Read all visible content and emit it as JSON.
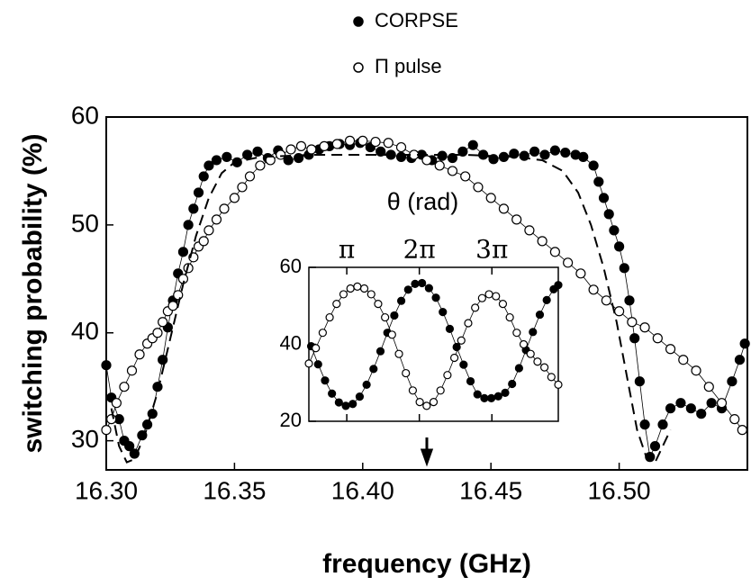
{
  "chart_data": [
    {
      "type": "scatter",
      "x_label": "frequency (GHz)",
      "y_label": "switching probability (%)",
      "xlim": [
        16.3,
        16.55
      ],
      "ylim": [
        27.3,
        60
      ],
      "xticks": [
        {
          "value": 16.3,
          "label": "16.30"
        },
        16.35,
        {
          "value": 16.4,
          "label": "16.40"
        },
        16.45,
        {
          "value": 16.5,
          "label": "16.50"
        }
      ],
      "yticks": [
        30,
        40,
        50,
        60
      ],
      "arrow_x": 16.425,
      "legend": "top",
      "series": [
        {
          "name": "CORPSE",
          "marker": "filled",
          "color": "#000000",
          "x": [
            16.3,
            16.302,
            16.305,
            16.307,
            16.309,
            16.311,
            16.314,
            16.316,
            16.318,
            16.32,
            16.322,
            16.324,
            16.326,
            16.328,
            16.33,
            16.332,
            16.334,
            16.336,
            16.338,
            16.34,
            16.343,
            16.347,
            16.351,
            16.355,
            16.359,
            16.363,
            16.367,
            16.371,
            16.375,
            16.379,
            16.383,
            16.387,
            16.391,
            16.395,
            16.399,
            16.403,
            16.407,
            16.411,
            16.415,
            16.419,
            16.423,
            16.427,
            16.431,
            16.435,
            16.439,
            16.443,
            16.447,
            16.451,
            16.455,
            16.459,
            16.463,
            16.467,
            16.471,
            16.475,
            16.479,
            16.483,
            16.486,
            16.49,
            16.492,
            16.494,
            16.496,
            16.498,
            16.5,
            16.502,
            16.504,
            16.506,
            16.508,
            16.51,
            16.512,
            16.514,
            16.517,
            16.52,
            16.524,
            16.528,
            16.532,
            16.536,
            16.54,
            16.544,
            16.547,
            16.549
          ],
          "values": [
            37,
            34,
            32,
            30,
            29.5,
            28.8,
            30.5,
            31.5,
            32.5,
            35,
            37.5,
            40.5,
            43,
            45.5,
            47.5,
            50,
            51.5,
            53,
            54.5,
            55.5,
            56,
            56.3,
            55.8,
            56.5,
            56.8,
            56.2,
            56.9,
            56,
            56.2,
            56.5,
            57,
            57.3,
            57.5,
            57.4,
            57.6,
            57.2,
            56.8,
            56.5,
            56.3,
            56.2,
            56.5,
            56,
            56.4,
            56.2,
            56.8,
            57.4,
            56.5,
            56.1,
            56.3,
            56.6,
            56.4,
            56.8,
            56.5,
            56.9,
            56.7,
            56.5,
            56.3,
            55.5,
            54,
            52.5,
            51,
            49.5,
            48,
            46,
            43,
            39.5,
            35.5,
            31.5,
            28.5,
            29.5,
            31.5,
            33,
            33.5,
            33,
            32.5,
            33.5,
            33,
            35.5,
            37.5,
            39
          ]
        },
        {
          "name": "Π pulse",
          "marker": "open",
          "color": "#000000",
          "x": [
            16.3,
            16.302,
            16.304,
            16.307,
            16.31,
            16.313,
            16.316,
            16.318,
            16.32,
            16.322,
            16.324,
            16.326,
            16.328,
            16.33,
            16.332,
            16.334,
            16.336,
            16.338,
            16.34,
            16.343,
            16.346,
            16.35,
            16.353,
            16.356,
            16.36,
            16.364,
            16.368,
            16.372,
            16.376,
            16.38,
            16.385,
            16.39,
            16.395,
            16.4,
            16.405,
            16.41,
            16.415,
            16.42,
            16.425,
            16.43,
            16.435,
            16.44,
            16.445,
            16.45,
            16.455,
            16.46,
            16.465,
            16.47,
            16.475,
            16.48,
            16.485,
            16.49,
            16.495,
            16.5,
            16.505,
            16.51,
            16.515,
            16.52,
            16.525,
            16.53,
            16.535,
            16.54,
            16.545,
            16.548
          ],
          "values": [
            31,
            32,
            33.5,
            35,
            36.5,
            38,
            39,
            39.5,
            40,
            41,
            42,
            42.5,
            43.5,
            45,
            46,
            47,
            48,
            48.5,
            49.5,
            50.5,
            51.5,
            52.5,
            53.5,
            54.5,
            55.5,
            56,
            56.5,
            57,
            57.3,
            57,
            57.3,
            57.5,
            57.8,
            57.8,
            57.7,
            57.6,
            57.2,
            56.5,
            56,
            55.5,
            55,
            54.5,
            53.5,
            52.5,
            51.5,
            50.5,
            49.5,
            48.5,
            47.5,
            46.5,
            45.5,
            44,
            43,
            42,
            41,
            40.5,
            39.5,
            38.5,
            37.5,
            36.5,
            35,
            33.5,
            32,
            31
          ]
        },
        {
          "marker": "none",
          "dash": true,
          "color": "#000000",
          "x": [
            16.302,
            16.305,
            16.308,
            16.311,
            16.315,
            16.32,
            16.325,
            16.33,
            16.335,
            16.34,
            16.345,
            16.35,
            16.36,
            16.38,
            16.4,
            16.42,
            16.44,
            16.46,
            16.47,
            16.478,
            16.484,
            16.489,
            16.494,
            16.499,
            16.503,
            16.507,
            16.511,
            16.514,
            16.517,
            16.52
          ],
          "values": [
            33,
            29.5,
            28,
            28.3,
            30.5,
            34.5,
            39.5,
            44.5,
            49,
            52.5,
            54.8,
            55.8,
            56.3,
            56.5,
            56.5,
            56.5,
            56.5,
            56.3,
            56,
            55,
            53,
            50,
            46,
            41,
            36,
            31,
            28.2,
            28,
            29.5,
            31
          ]
        }
      ]
    },
    {
      "type": "scatter",
      "title": "θ (rad)",
      "xlim": [
        1.5,
        12.3
      ],
      "ylim": [
        20,
        60
      ],
      "xticks": [
        {
          "value": 3.14159,
          "label": "π"
        },
        {
          "value": 6.28319,
          "label": "2π"
        },
        {
          "value": 9.42478,
          "label": "3π"
        }
      ],
      "yticks": [
        20,
        40,
        60
      ],
      "series": [
        {
          "marker": "filled",
          "color": "#000000",
          "x": [
            1.6,
            1.9,
            2.2,
            2.5,
            2.8,
            3.1,
            3.4,
            3.7,
            4.0,
            4.3,
            4.6,
            4.9,
            5.2,
            5.5,
            5.8,
            6.1,
            6.4,
            6.7,
            7.0,
            7.3,
            7.6,
            7.9,
            8.2,
            8.5,
            8.8,
            9.1,
            9.4,
            9.7,
            10.0,
            10.3,
            10.6,
            10.9,
            11.2,
            11.5,
            11.8,
            12.1,
            12.3
          ],
          "values": [
            39.5,
            34.8,
            30.6,
            27.2,
            24.9,
            24.0,
            24.5,
            26.4,
            29.5,
            33.6,
            38.2,
            43.0,
            47.5,
            51.3,
            54.2,
            55.7,
            55.9,
            54.6,
            52.1,
            48.4,
            44.0,
            39.3,
            34.7,
            30.4,
            27.0,
            26.0,
            26.0,
            26.5,
            27.4,
            29.7,
            33.8,
            38.5,
            43.2,
            47.7,
            51.5,
            54.3,
            55.4
          ]
        },
        {
          "marker": "open",
          "color": "#000000",
          "x": [
            1.5,
            1.8,
            2.1,
            2.4,
            2.7,
            3.0,
            3.3,
            3.6,
            3.9,
            4.2,
            4.5,
            4.8,
            5.1,
            5.4,
            5.7,
            6.0,
            6.3,
            6.6,
            6.9,
            7.2,
            7.5,
            7.8,
            8.1,
            8.4,
            8.7,
            9.0,
            9.3,
            9.6,
            9.9,
            10.2,
            10.5,
            10.8,
            11.1,
            11.4,
            11.7,
            12.0,
            12.3
          ],
          "values": [
            35,
            39,
            43,
            47,
            50.5,
            53,
            54.5,
            55,
            54.5,
            53,
            50.5,
            47,
            42.5,
            37.5,
            32.5,
            28,
            25,
            24,
            25,
            28,
            32,
            36.5,
            41,
            45.5,
            49.5,
            52,
            53,
            52.5,
            50.5,
            47,
            43,
            40,
            37.5,
            35.5,
            34,
            31.5,
            29.5
          ]
        }
      ]
    }
  ]
}
